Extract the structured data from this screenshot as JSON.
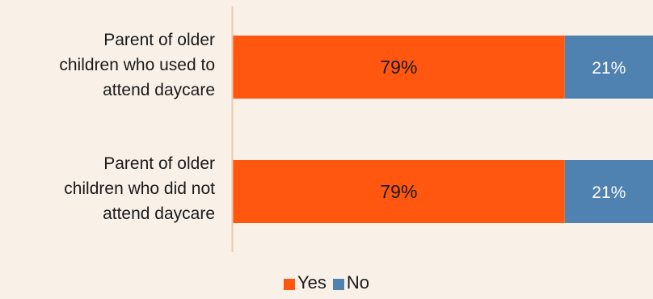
{
  "colors": {
    "yes": "#FF5710",
    "no": "#4F81B1",
    "axis": "#F3C7A8",
    "label_text": "#1a1a1a",
    "no_label_text": "#ffffff"
  },
  "chart_data": {
    "type": "bar",
    "orientation": "horizontal",
    "stacked": true,
    "categories": [
      "Parent of older children who used to attend daycare",
      "Parent of older children who did not attend daycare"
    ],
    "category_label_lines": [
      [
        "Parent of older",
        "children who used to",
        "attend daycare"
      ],
      [
        "Parent of older",
        "children who did not",
        "attend daycare"
      ]
    ],
    "series": [
      {
        "name": "Yes",
        "values": [
          79,
          79
        ],
        "labels": [
          "79%",
          "79%"
        ]
      },
      {
        "name": "No",
        "values": [
          21,
          21
        ],
        "labels": [
          "21%",
          "21%"
        ]
      }
    ],
    "xlim": [
      0,
      100
    ],
    "unit": "%",
    "grid": false,
    "legend": "bottom-center"
  },
  "legend": {
    "yes_label": "Yes",
    "no_label": "No"
  }
}
